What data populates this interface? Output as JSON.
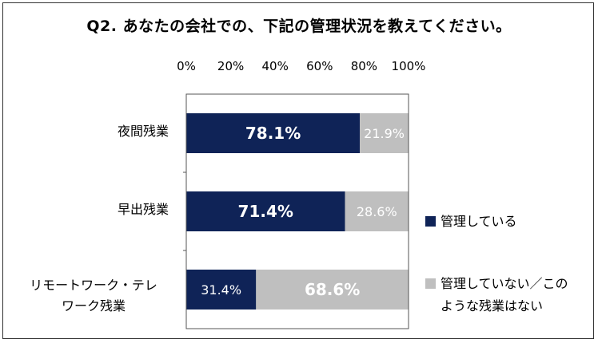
{
  "chart_data": {
    "type": "bar",
    "orientation": "horizontal",
    "stacked": true,
    "title": "Q2.  あなたの会社での、下記の管理状況を教えてください。",
    "categories": [
      "夜間残業",
      "早出残業",
      "リモートワーク・テレワーク残業"
    ],
    "category_lines": [
      [
        "夜間残業"
      ],
      [
        "早出残業"
      ],
      [
        "リモートワーク・テレ",
        "ワーク残業"
      ]
    ],
    "series": [
      {
        "name": "管理している",
        "values": [
          78.1,
          71.4,
          31.4
        ],
        "labels": [
          "78.1%",
          "71.4%",
          "31.4%"
        ],
        "color": "#0f2357"
      },
      {
        "name": "管理していない／このような残業はない",
        "values": [
          21.9,
          28.6,
          68.6
        ],
        "labels": [
          "21.9%",
          "28.6%",
          "68.6%"
        ],
        "color": "#bfbfbf"
      }
    ],
    "x_ticks": [
      "0%",
      "20%",
      "40%",
      "60%",
      "80%",
      "100%"
    ],
    "xlim": [
      0,
      100
    ],
    "legend_position": "right",
    "legend_lines": [
      [
        "管理している"
      ],
      [
        "管理していない／この",
        "ような残業はない"
      ]
    ],
    "grid": false
  }
}
